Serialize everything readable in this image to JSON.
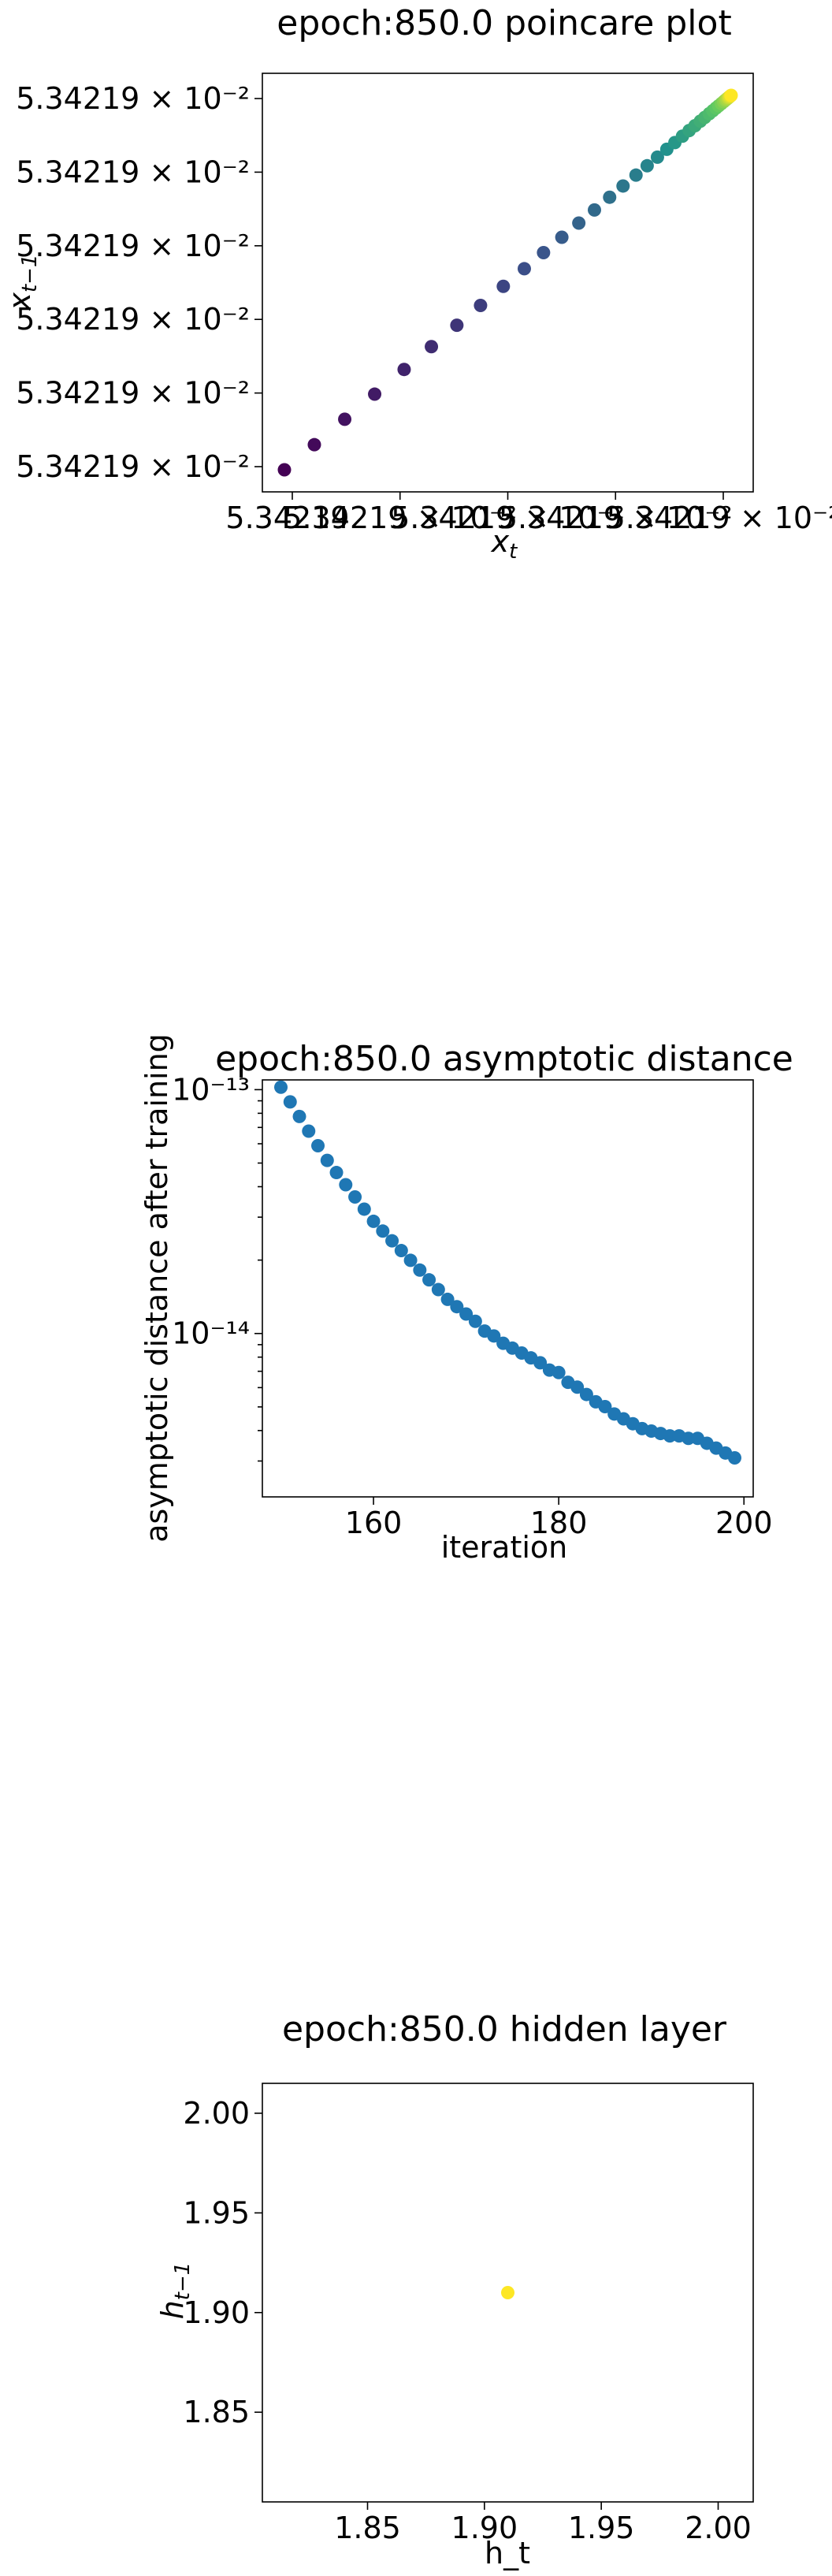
{
  "colors": {
    "viridis_start": "#440154",
    "viridis_mid": "#21918c",
    "viridis_end": "#fde725",
    "series_blue": "#1f77b4",
    "hidden_point": "#fde725"
  },
  "chart_data": [
    {
      "type": "scatter",
      "title": "epoch:850.0 poincare plot",
      "xlabel": "x_t",
      "ylabel": "x_{t-1}",
      "color_map": "viridis",
      "x_tick_labels": [
        "5.34219",
        "5.34219 × 10⁻²",
        "5.34219 × 10⁻²",
        "5.34219 × 10⁻²",
        "5.34219 × 10⁻²"
      ],
      "y_tick_labels": [
        "5.34219 × 10⁻²",
        "5.34219 × 10⁻²",
        "5.34219 × 10⁻²",
        "5.34219 × 10⁻²",
        "5.34219 × 10⁻²",
        "5.34219 × 10⁻²"
      ],
      "x": [
        0.0,
        0.067,
        0.135,
        0.202,
        0.268,
        0.329,
        0.386,
        0.439,
        0.49,
        0.537,
        0.58,
        0.621,
        0.659,
        0.694,
        0.728,
        0.758,
        0.787,
        0.812,
        0.835,
        0.856,
        0.874,
        0.891,
        0.906,
        0.919,
        0.931,
        0.941,
        0.951,
        0.959,
        0.966,
        0.972,
        0.978,
        0.983,
        0.987,
        0.99,
        0.993,
        0.995,
        0.997,
        0.999,
        1.0
      ],
      "y": [
        0.0,
        0.067,
        0.135,
        0.202,
        0.268,
        0.329,
        0.386,
        0.439,
        0.49,
        0.537,
        0.58,
        0.621,
        0.659,
        0.694,
        0.728,
        0.758,
        0.787,
        0.812,
        0.835,
        0.856,
        0.874,
        0.891,
        0.906,
        0.919,
        0.931,
        0.941,
        0.951,
        0.959,
        0.966,
        0.972,
        0.978,
        0.983,
        0.987,
        0.99,
        0.993,
        0.995,
        0.997,
        0.999,
        1.0
      ]
    },
    {
      "type": "scatter",
      "title": "epoch:850.0 asymptotic distance",
      "xlabel": "iteration",
      "ylabel": "asymptotic distance after training",
      "y_scale": "log",
      "xlim": [
        148,
        201
      ],
      "ylim_log10": [
        -14.67,
        -12.96
      ],
      "x_ticks": [
        160,
        180,
        200
      ],
      "x_tick_labels": [
        "160",
        "180",
        "200"
      ],
      "y_ticks_log10": [
        -13,
        -14
      ],
      "y_tick_labels": [
        "10⁻¹³",
        "10⁻¹⁴"
      ],
      "x": [
        150,
        151,
        152,
        153,
        154,
        155,
        156,
        157,
        158,
        159,
        160,
        161,
        162,
        163,
        164,
        165,
        166,
        167,
        168,
        169,
        170,
        171,
        172,
        173,
        174,
        175,
        176,
        177,
        178,
        179,
        180,
        181,
        182,
        183,
        184,
        185,
        186,
        187,
        188,
        189,
        190,
        191,
        192,
        193,
        194,
        195,
        196,
        197,
        198,
        199
      ],
      "y_log10": [
        -12.99,
        -13.05,
        -13.11,
        -13.17,
        -13.23,
        -13.29,
        -13.34,
        -13.39,
        -13.44,
        -13.49,
        -13.54,
        -13.58,
        -13.62,
        -13.66,
        -13.7,
        -13.74,
        -13.78,
        -13.82,
        -13.86,
        -13.89,
        -13.92,
        -13.95,
        -13.99,
        -14.01,
        -14.04,
        -14.06,
        -14.08,
        -14.1,
        -14.12,
        -14.15,
        -14.16,
        -14.2,
        -14.22,
        -14.25,
        -14.28,
        -14.3,
        -14.33,
        -14.35,
        -14.37,
        -14.39,
        -14.4,
        -14.41,
        -14.42,
        -14.42,
        -14.43,
        -14.43,
        -14.45,
        -14.47,
        -14.49,
        -14.51
      ]
    },
    {
      "type": "scatter",
      "title": "epoch:850.0 hidden layer",
      "xlabel": "h_t",
      "ylabel": "h_{t-1}",
      "xlim": [
        1.805,
        2.015
      ],
      "ylim": [
        1.805,
        2.015
      ],
      "x_ticks": [
        1.85,
        1.9,
        1.95,
        2.0
      ],
      "x_tick_labels": [
        "1.85",
        "1.90",
        "1.95",
        "2.00"
      ],
      "y_ticks": [
        1.85,
        1.9,
        1.95,
        2.0
      ],
      "y_tick_labels": [
        "1.85",
        "1.90",
        "1.95",
        "2.00"
      ],
      "x": [
        1.91
      ],
      "y": [
        1.91
      ]
    }
  ]
}
